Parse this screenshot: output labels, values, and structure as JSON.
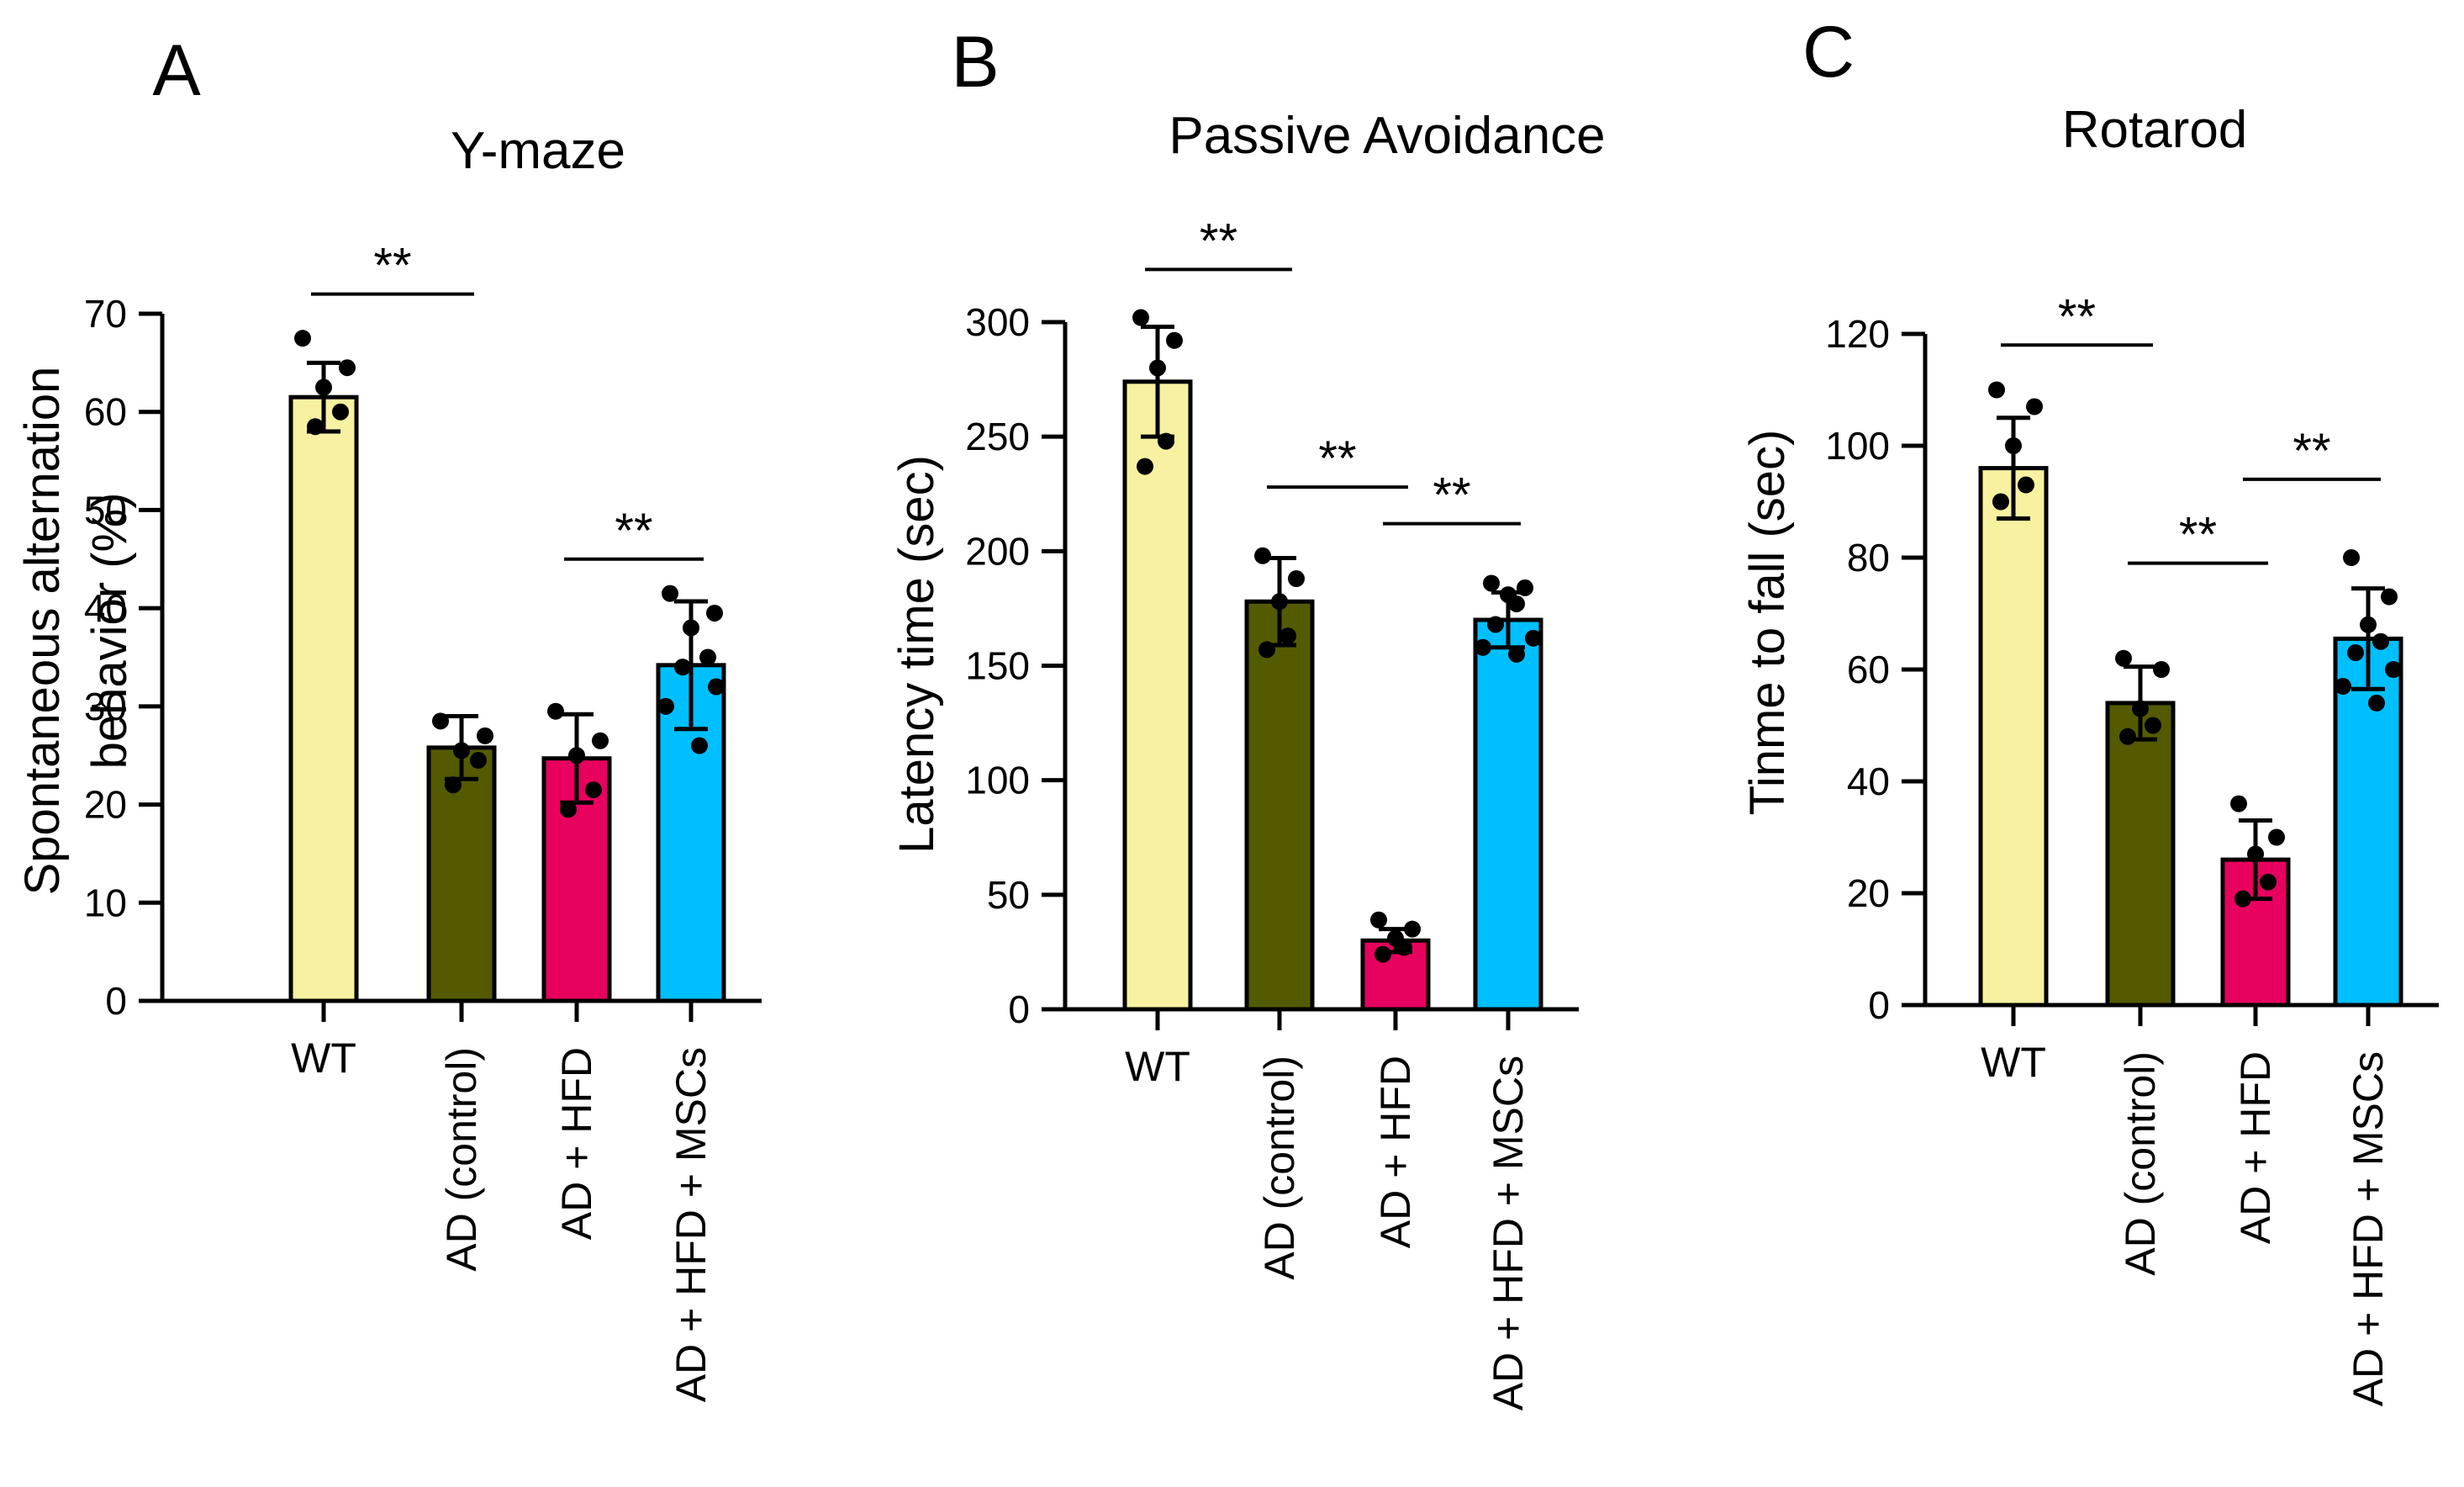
{
  "colors": {
    "WT": "#F7F1A1",
    "AD (control)": "#545A00",
    "AD + HFD": "#E8005F",
    "AD + HFD + MSCs": "#00BFFF",
    "ink": "#000000"
  },
  "chart_data": [
    {
      "type": "bar",
      "panel": "A",
      "title": "Y-maze",
      "ylabel_lines": [
        "Spontaneous alternation",
        "behavior (%)"
      ],
      "xlabel": "",
      "ylim": [
        0,
        70
      ],
      "yticks": [
        0,
        10,
        20,
        30,
        40,
        50,
        60,
        70
      ],
      "categories": [
        "WT",
        "AD (control)",
        "AD + HFD",
        "AD + HFD + MSCs"
      ],
      "values": [
        61.5,
        25.8,
        24.7,
        34.2
      ],
      "errors": [
        3.5,
        3.2,
        4.5,
        6.5
      ],
      "points": [
        [
          67.5,
          64.5,
          62.5,
          60.0,
          58.5
        ],
        [
          28.5,
          27.0,
          25.5,
          24.5,
          22.0
        ],
        [
          29.5,
          26.5,
          25.0,
          21.5,
          19.5
        ],
        [
          41.5,
          39.5,
          38.0,
          35.0,
          34.0,
          32.0,
          30.0,
          26.0
        ]
      ],
      "significance": [
        {
          "from": 0,
          "to": 1,
          "y": 72,
          "label": "**"
        },
        {
          "from": 2,
          "to": 3,
          "y": 45,
          "label": "**"
        }
      ]
    },
    {
      "type": "bar",
      "panel": "B",
      "title": "Passive Avoidance",
      "ylabel_lines": [
        "Latency time (sec)"
      ],
      "xlabel": "",
      "ylim": [
        0,
        300
      ],
      "yticks": [
        0,
        50,
        100,
        150,
        200,
        250,
        300
      ],
      "categories": [
        "WT",
        "AD (control)",
        "AD + HFD",
        "AD + HFD + MSCs"
      ],
      "values": [
        274,
        178,
        30,
        170
      ],
      "errors": [
        24,
        19,
        5,
        12
      ],
      "points": [
        [
          302,
          292,
          280,
          248,
          237
        ],
        [
          198,
          188,
          178,
          163,
          157
        ],
        [
          39,
          35,
          31,
          27,
          24
        ],
        [
          186,
          184,
          181,
          177,
          168,
          162,
          158,
          155
        ]
      ],
      "significance": [
        {
          "from": 0,
          "to": 1,
          "y": 323,
          "label": "**"
        },
        {
          "from": 1,
          "to": 2,
          "y": 228,
          "label": "**"
        },
        {
          "from": 2,
          "to": 3,
          "y": 212,
          "label": "**"
        }
      ]
    },
    {
      "type": "bar",
      "panel": "C",
      "title": "Rotarod",
      "ylabel_lines": [
        "Tinme to fall (sec)"
      ],
      "xlabel": "",
      "ylim": [
        0,
        120
      ],
      "yticks": [
        0,
        20,
        40,
        60,
        80,
        100,
        120
      ],
      "categories": [
        "WT",
        "AD (control)",
        "AD + HFD",
        "AD + HFD + MSCs"
      ],
      "values": [
        96,
        54,
        26,
        65.5
      ],
      "errors": [
        9,
        6.5,
        7,
        9
      ],
      "points": [
        [
          110,
          107,
          100,
          93,
          90
        ],
        [
          62,
          60,
          53,
          50,
          48
        ],
        [
          36,
          30,
          27,
          22,
          19
        ],
        [
          80,
          73,
          68,
          65,
          63,
          60,
          57,
          54
        ]
      ],
      "significance": [
        {
          "from": 0,
          "to": 1,
          "y": 118,
          "label": "**"
        },
        {
          "from": 1,
          "to": 2,
          "y": 79,
          "label": "**"
        },
        {
          "from": 2,
          "to": 3,
          "y": 94,
          "label": "**"
        }
      ]
    }
  ]
}
